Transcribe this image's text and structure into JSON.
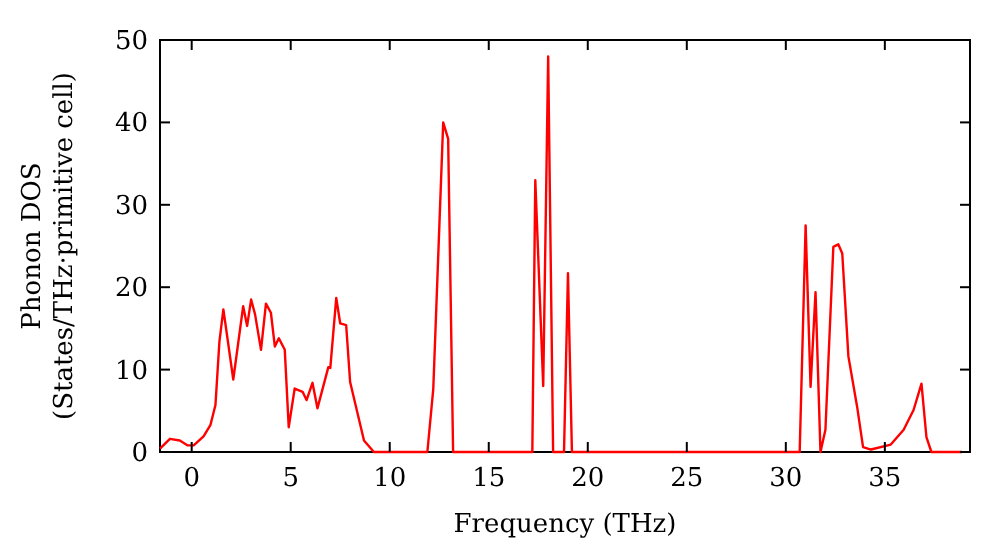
{
  "chart_data": {
    "type": "line",
    "xlabel": "Frequency (THz)",
    "ylabel": "Phonon DOS\n(States/THz·primitive cell)",
    "xlim": [
      -1.6,
      39.3
    ],
    "ylim": [
      0,
      50
    ],
    "xticks": [
      0,
      5,
      10,
      15,
      20,
      25,
      30,
      35
    ],
    "yticks": [
      0,
      10,
      20,
      30,
      40,
      50
    ],
    "grid": false,
    "marker": "none",
    "line_style": "solid",
    "series": [
      {
        "color": "#ff0000",
        "x": [
          -1.6,
          -1.1,
          -0.6,
          -0.2,
          0.1,
          0.6,
          0.95,
          1.2,
          1.4,
          1.6,
          2.1,
          2.6,
          2.8,
          3.0,
          3.2,
          3.5,
          3.75,
          4.0,
          4.2,
          4.4,
          4.7,
          4.9,
          5.2,
          5.6,
          5.8,
          6.1,
          6.35,
          6.9,
          7.0,
          7.3,
          7.5,
          7.8,
          8.0,
          8.7,
          9.2,
          11.9,
          12.2,
          12.7,
          12.95,
          13.2,
          17.2,
          17.35,
          17.75,
          18.0,
          18.25,
          18.8,
          19.0,
          19.2,
          30.7,
          31.0,
          31.25,
          31.5,
          31.75,
          32.0,
          32.4,
          32.65,
          32.85,
          33.16,
          33.6,
          33.9,
          34.3,
          35.3,
          35.95,
          36.45,
          36.85,
          37.1,
          37.35,
          38.9
        ],
        "values": [
          0.4,
          1.6,
          1.4,
          0.8,
          0.8,
          1.9,
          3.3,
          5.7,
          13.4,
          17.3,
          8.8,
          17.7,
          15.3,
          18.5,
          16.7,
          12.4,
          18,
          16.9,
          12.8,
          13.8,
          12.4,
          3.0,
          7.7,
          7.3,
          6.3,
          8.4,
          5.3,
          10.3,
          10.2,
          18.7,
          15.6,
          15.4,
          8.5,
          1.4,
          0,
          0,
          7.7,
          40,
          38,
          0,
          0,
          33,
          8,
          48,
          0,
          0,
          21.7,
          0,
          0,
          27.5,
          7.9,
          19.4,
          0,
          2.7,
          24.9,
          25.2,
          24.1,
          11.6,
          5.5,
          0.6,
          0.3,
          0.9,
          2.7,
          5.1,
          8.3,
          1.8,
          0,
          0
        ]
      }
    ]
  }
}
